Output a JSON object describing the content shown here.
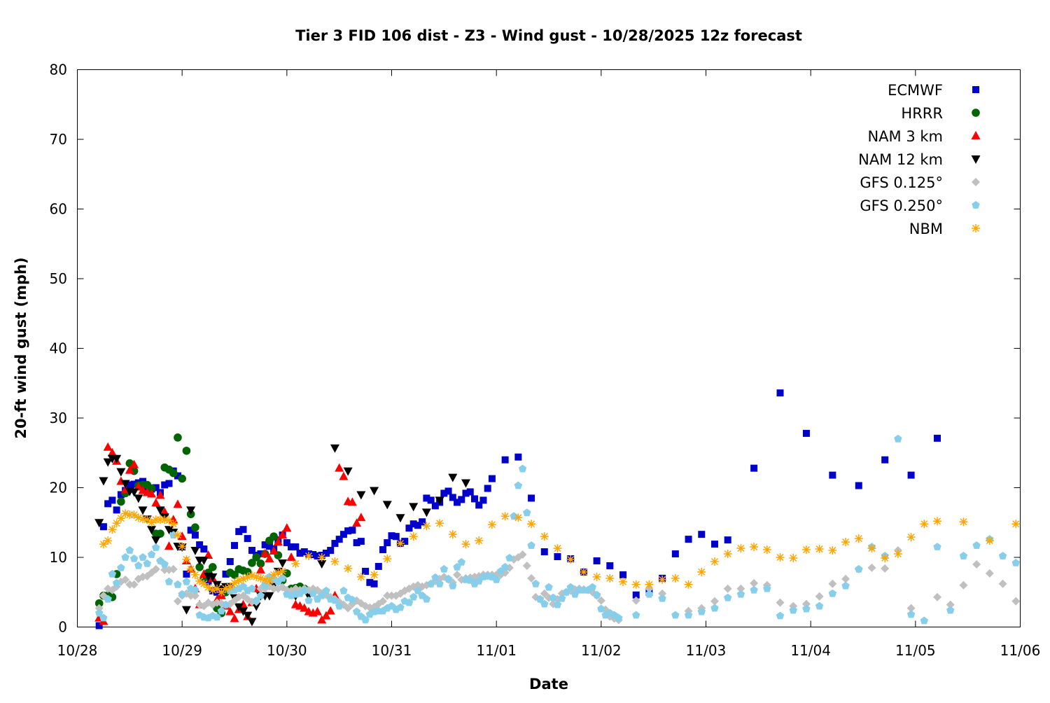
{
  "chart_data": {
    "type": "scatter",
    "title": "Tier 3 FID 106 dist - Z3 - Wind gust - 10/28/2025 12z forecast",
    "xlabel": "Date",
    "ylabel": "20-ft wind gust (mph)",
    "xlim": [
      "2025-10-28T00:00",
      "2025-11-06T00:00"
    ],
    "ylim": [
      0,
      80
    ],
    "x_ticks": [
      "10/28",
      "10/29",
      "10/30",
      "10/31",
      "11/01",
      "11/02",
      "11/03",
      "11/04",
      "11/05",
      "11/06"
    ],
    "y_ticks": [
      "0",
      "10",
      "20",
      "30",
      "40",
      "50",
      "60",
      "70",
      "80"
    ],
    "grid": false,
    "legend_position": "top-right",
    "series": [
      {
        "name": "ECMWF",
        "color": "#0000cc",
        "marker": "square",
        "segments": [
          {
            "start": "2025-10-28T05:00",
            "step_hours": 1,
            "values": [
              0.2,
              14.4,
              17.7,
              18.2,
              16.8,
              19,
              19.6,
              20.4,
              20.5,
              20.7,
              20.9,
              20.1,
              19.8,
              20,
              19.3,
              20.4,
              20.6,
              22.4,
              21.7,
              11.5,
              7.6,
              13.9,
              13.2,
              11.8,
              11.2,
              6.5,
              5.2,
              5,
              4.6,
              7.6,
              9.4,
              11.7,
              13.7,
              14,
              12.7,
              11,
              10.3,
              10.5,
              11.8,
              11.6,
              11.2,
              12.5,
              13.2,
              12.1,
              11.5,
              11.5,
              10.6,
              10.8,
              10.5,
              10.4,
              10.2,
              10.3,
              10.6,
              11,
              12,
              12.6,
              13.3,
              13.8,
              13.9,
              12.1,
              12.3,
              8,
              6.4,
              6.2,
              8.7,
              11.1,
              12.1,
              13.1,
              13,
              12,
              12.3,
              14.2,
              14.8,
              14.6,
              15.1,
              18.5,
              18.2,
              17.4,
              17.9,
              19.2,
              19.5,
              18.6,
              17.9,
              18.3,
              19.2,
              19.4,
              18.4,
              17.5,
              18.2,
              19.9,
              21.3
            ]
          },
          {
            "start": "2025-11-01T02:00",
            "step_hours": 3,
            "values": [
              24,
              24.4,
              18.5,
              10.8,
              10.1,
              9.8,
              7.9,
              9.5,
              8.8,
              7.5,
              4.6,
              5,
              7,
              10.5,
              12.6,
              13.3,
              11.9,
              12.5
            ]
          },
          {
            "start": "2025-11-03T11:00",
            "step_hours": 6,
            "values": [
              22.8,
              33.6,
              27.8,
              21.8,
              20.3,
              24,
              21.8,
              27.1
            ]
          }
        ]
      },
      {
        "name": "HRRR",
        "color": "#006400",
        "marker": "circle",
        "segments": [
          {
            "start": "2025-10-28T05:00",
            "step_hours": 1,
            "values": [
              3.4,
              4.5,
              4.5,
              4.3,
              7.6,
              18,
              19.2,
              23.5,
              22.4,
              20.3,
              20.4,
              20.4,
              19.9,
              13.4,
              13.4,
              22.9,
              22.6,
              22.1,
              27.2,
              21.3,
              25.3,
              16.2,
              14.3,
              8.6,
              7,
              7.8,
              8.6,
              2.7,
              2,
              5,
              7.8,
              7.5,
              8.3,
              8.1,
              7.9,
              9.2,
              10,
              9.1,
              10.5,
              12.4,
              13,
              10.3,
              6.7,
              7.7,
              5.5,
              5.6,
              5.8,
              5.5
            ]
          }
        ]
      },
      {
        "name": "NAM 3 km",
        "color": "#ff0000",
        "marker": "triangle-up",
        "segments": [
          {
            "start": "2025-10-28T05:00",
            "step_hours": 1,
            "values": [
              1.3,
              0.8,
              25.8,
              25,
              23.8,
              20.9,
              19.7,
              22.5,
              23.3,
              20.1,
              19.6,
              19.3,
              19.1,
              17.8,
              18.9,
              16.5,
              11.6,
              15.4,
              17.6,
              13,
              9.5,
              8.3,
              5.5,
              3.2,
              7.6,
              10.3,
              7,
              3.9,
              4.5,
              3,
              2.2,
              1.2,
              2.5,
              3.2,
              1.5,
              3.5,
              5.5,
              8.2,
              10.5,
              9.8,
              10.9,
              12.2,
              13.2,
              14.2,
              10,
              3.2,
              3,
              2.7,
              2.2,
              2,
              2.2,
              1,
              1.6,
              2.3,
              4.5,
              22.8,
              21.6,
              18,
              17.9,
              14.9,
              15.7
            ]
          }
        ]
      },
      {
        "name": "NAM 12 km",
        "color": "#000000",
        "marker": "triangle-down",
        "segments": [
          {
            "start": "2025-10-28T05:00",
            "step_hours": 1,
            "values": [
              15,
              21,
              23.7,
              24.2,
              24.2,
              22.3,
              20.6,
              19.5,
              19.4,
              18.5,
              16.8,
              15.5,
              14,
              12.5,
              16.8,
              15.8,
              14,
              13.6,
              11.6,
              11.5,
              2.5,
              16.8,
              11,
              9.6,
              9.6,
              7.3,
              7.2,
              6.1,
              5.5,
              5.8,
              5.8,
              4.2,
              2.9,
              2.3,
              1.7,
              0.8,
              3,
              4.5,
              4.5,
              4.5,
              6,
              8
            ]
          },
          {
            "start": "2025-10-29T23:00",
            "step_hours": 3,
            "values": [
              9.2,
              4.5,
              4.5,
              9.1,
              25.7,
              22.4,
              19,
              19.6,
              17.6,
              15.7,
              17.3,
              16.5,
              18.2,
              21.5,
              20.7
            ]
          }
        ]
      },
      {
        "name": "GFS 0.125°",
        "color": "#c0c0c0",
        "marker": "diamond",
        "segments": [
          {
            "start": "2025-10-28T05:00",
            "step_hours": 1,
            "values": [
              2.7,
              4.5,
              5.5,
              5.3,
              5.8,
              6.5,
              6.8,
              6.1,
              6.1,
              6.9,
              7.2,
              7.3,
              7.8,
              8.3,
              9.5,
              8.2,
              8.2,
              8.3,
              3.7,
              4.5,
              4.8,
              4.5,
              4.5,
              3.2,
              3,
              3.5,
              3.2,
              3.5,
              3.4,
              3.2,
              3.3,
              3.8,
              4.3,
              4.5,
              4,
              3.6,
              3.6,
              5.5,
              5.5,
              5.8,
              5.5,
              5.5,
              5.7,
              5.3,
              5.2,
              5.5,
              5.3,
              5.5,
              5.3,
              5.5,
              5.3,
              4.8,
              4.6,
              4.3,
              4,
              3.6,
              3.2,
              2.7,
              3.3,
              3.8,
              3.4,
              3,
              2.8,
              2.9,
              3.3,
              3.7,
              4.5,
              4.5,
              4.5,
              4.8,
              5.2,
              5.5,
              5.8,
              6,
              5.8,
              6,
              6.2,
              6.6,
              6.9,
              7.2,
              6.8,
              6.4,
              7.5,
              6.8,
              7,
              7.1,
              7.2,
              7.3,
              7.5,
              7.5,
              7.5,
              7.5,
              7.5,
              7.8,
              8.5,
              9.7,
              10,
              10.4,
              8.8,
              7,
              4.3,
              4,
              4.8,
              4.2,
              3.3,
              4,
              4.8,
              5,
              5.2,
              5.4,
              5.5,
              5.4,
              5.3,
              5,
              4.5,
              3.8,
              2.5,
              1.5,
              1.2,
              1
            ]
          },
          {
            "start": "2025-11-02T08:00",
            "step_hours": 3,
            "values": [
              3.8,
              5.5,
              4.8,
              null,
              2.3,
              2.7,
              3.7,
              5.5,
              5.5,
              6.3,
              6,
              3.5,
              3,
              3.3,
              4.4,
              6.2,
              6.9,
              8.3,
              8.5,
              8.4,
              11,
              2.7,
              null,
              4.3,
              3.2,
              6,
              9,
              7.7,
              6.2,
              3.7
            ]
          }
        ]
      },
      {
        "name": "GFS 0.250°",
        "color": "#87ceeb",
        "marker": "pentagon",
        "segments": [
          {
            "start": "2025-10-28T05:00",
            "step_hours": 1,
            "values": [
              2,
              1.3,
              4,
              7.6,
              6.3,
              8.5,
              10,
              11,
              9.8,
              8.8,
              10,
              9.1,
              10.4,
              11.4,
              9.5,
              9,
              6.5,
              13.2,
              6.1,
              4.7,
              6.5,
              5.5,
              5.3,
              1.7,
              1.4,
              1.3,
              1.6,
              1.4,
              2.3,
              3.2,
              5.2,
              5.3,
              5.5,
              5.8,
              5.2,
              5.5,
              3.8,
              4.5,
              6,
              7.2,
              6.8,
              6.5,
              7,
              4.7,
              4.5,
              4.7,
              4.8,
              5.2,
              3.8,
              4.8,
              4,
              4.5,
              5.2,
              4,
              3.8,
              3,
              5.2,
              4.2,
              3.9,
              2.2,
              1.5,
              1,
              1.8,
              2.2,
              2.3,
              2.3,
              2.7,
              3,
              2.5,
              2.8,
              3.7,
              3.5,
              4.3,
              5.2,
              4.5,
              4,
              6.2,
              7.1,
              6.2,
              8.3,
              6.9,
              5.9,
              8.6,
              9.3,
              6.8,
              6.7,
              6.2,
              6.6,
              7.2,
              7.3,
              7.2,
              6.8,
              8,
              8.6,
              9.9,
              15.9,
              20.3,
              22.7,
              16.4,
              11.7,
              6.2,
              4,
              3.3,
              5.7,
              4.2,
              3.2,
              4.1,
              5,
              5.7,
              4.7,
              5.3,
              5.3,
              5.3,
              5.7,
              4.6,
              2.6,
              1.7,
              2,
              1.7,
              1.3
            ]
          },
          {
            "start": "2025-11-02T08:00",
            "step_hours": 3,
            "values": [
              1.7,
              4.7,
              4.1,
              1.7,
              1.7,
              2.2,
              2.7,
              4.2,
              4.7,
              5.3,
              5.5,
              1.6,
              2.4,
              2.6,
              3,
              4.8,
              5.9,
              8.3,
              11.5,
              10.2,
              27,
              1.8,
              0.9,
              11.5,
              2.4,
              10.2,
              11.7,
              12.6,
              10.2,
              9.2
            ]
          }
        ]
      },
      {
        "name": "NBM",
        "color": "#ffa500",
        "marker": "asterisk",
        "segments": [
          {
            "start": "2025-10-28T06:00",
            "step_hours": 1,
            "values": [
              11.9,
              12.4,
              14,
              14.9,
              15.6,
              16.3,
              16.1,
              16.1,
              15.7,
              15.5,
              15.4,
              15,
              15.4,
              15.4,
              15.4,
              15.3,
              14.8,
              13.2,
              11.6,
              9.7,
              8.3,
              7.5,
              6.6,
              6.2,
              5.7,
              5.3,
              5.5,
              5,
              5.5,
              5.8,
              6.3,
              6.7,
              6.9,
              7.2,
              7.4,
              7.2,
              7,
              6.8,
              6.6,
              7.5,
              7.8
            ]
          },
          {
            "start": "2025-10-29T23:00",
            "step_hours": 3,
            "values": [
              8,
              9.1,
              10.2,
              10,
              9.4,
              8.4,
              7.2,
              7.5,
              9.8,
              12,
              13,
              14.5,
              14.9,
              13.3,
              11.9,
              12.4,
              14.7,
              15.9,
              15.7,
              14.8,
              13,
              11.3,
              9.7,
              7.9,
              7.2,
              7,
              6.5,
              6.1,
              6.1,
              6.8,
              7,
              6.1,
              7.9,
              9.4,
              10.5,
              11.3,
              11.5,
              11.1,
              10,
              9.9,
              11.1,
              11.2,
              11,
              12.2,
              12.7,
              11.3,
              9.9,
              10.5,
              12.9,
              14.8,
              15.2,
              null,
              15.1,
              null,
              12.4,
              null,
              14.8
            ]
          }
        ]
      }
    ]
  }
}
